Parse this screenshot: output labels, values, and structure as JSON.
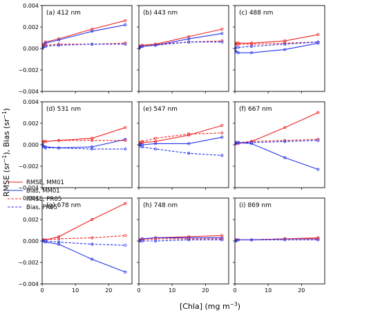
{
  "figure": {
    "ylabel_main": "RMSE (sr",
    "ylabel_sup1": "−1",
    "ylabel_mid": "), Bias (sr",
    "ylabel_sup2": "−1",
    "ylabel_end": ")",
    "xlabel_main": "[Chla] (mg m",
    "xlabel_sup": "−3",
    "xlabel_end": ")"
  },
  "legend": {
    "entries": [
      {
        "label": "RMSE, MM01",
        "color": "#ee2222",
        "style": "solid"
      },
      {
        "label": "Bias, MM01",
        "color": "#2233ee",
        "style": "solid"
      },
      {
        "label": "RMSE, PR05",
        "color": "#ee2222",
        "style": "dashed"
      },
      {
        "label": "Bias, PR05",
        "color": "#2233ee",
        "style": "dashed"
      }
    ]
  },
  "chart_data": {
    "type": "line",
    "layout": "3x3 small multiples",
    "x": [
      0.03,
      0.3,
      1,
      5,
      15,
      25
    ],
    "xlim": [
      0,
      27
    ],
    "xticks": [
      0,
      10,
      20
    ],
    "ylim": [
      -0.004,
      0.004
    ],
    "yticks": [
      -0.004,
      -0.002,
      0.0,
      0.002,
      0.004
    ],
    "ytick_labels": [
      "−0.004",
      "−0.002",
      "0.000",
      "0.002",
      "0.004"
    ],
    "grid": false,
    "legend_location": "panel g area, left column",
    "colors": {
      "mm01": "#ee2222",
      "bias_mm01": "#2233ee"
    },
    "panels": [
      {
        "title": "(a) 412 nm",
        "series": [
          {
            "name": "RMSE, MM01",
            "values": [
              0.0003,
              0.0004,
              0.0006,
              0.0009,
              0.0018,
              0.0026
            ]
          },
          {
            "name": "Bias, MM01",
            "values": [
              0.0,
              0.0002,
              0.0005,
              0.0008,
              0.0016,
              0.0022
            ]
          },
          {
            "name": "RMSE, PR05",
            "values": [
              0.0002,
              0.0003,
              0.0003,
              0.0004,
              0.0004,
              0.0005
            ]
          },
          {
            "name": "Bias, PR05",
            "values": [
              0.0,
              0.0001,
              0.0002,
              0.0003,
              0.0004,
              0.0004
            ]
          }
        ]
      },
      {
        "title": "(b) 443 nm",
        "series": [
          {
            "name": "RMSE, MM01",
            "values": [
              0.0002,
              0.0002,
              0.0003,
              0.0004,
              0.0011,
              0.0018
            ]
          },
          {
            "name": "Bias, MM01",
            "values": [
              0.0,
              0.0001,
              0.0002,
              0.0003,
              0.0009,
              0.0014
            ]
          },
          {
            "name": "RMSE, PR05",
            "values": [
              0.0001,
              0.0002,
              0.0002,
              0.0004,
              0.0006,
              0.0007
            ]
          },
          {
            "name": "Bias, PR05",
            "values": [
              0.0,
              0.0001,
              0.0002,
              0.0003,
              0.0006,
              0.0006
            ]
          }
        ]
      },
      {
        "title": "(c) 488 nm",
        "series": [
          {
            "name": "RMSE, MM01",
            "values": [
              0.0004,
              0.0005,
              0.0005,
              0.0005,
              0.0007,
              0.0013
            ]
          },
          {
            "name": "Bias, MM01",
            "values": [
              -0.0002,
              -0.0003,
              -0.0004,
              -0.0004,
              -0.0001,
              0.0005
            ]
          },
          {
            "name": "RMSE, PR05",
            "values": [
              0.0004,
              0.0004,
              0.0004,
              0.0004,
              0.0005,
              0.0006
            ]
          },
          {
            "name": "Bias, PR05",
            "values": [
              0.0,
              0.0001,
              0.0001,
              0.0002,
              0.0004,
              0.0006
            ]
          }
        ]
      },
      {
        "title": "(d) 531 nm",
        "series": [
          {
            "name": "RMSE, MM01",
            "values": [
              0.0002,
              0.0003,
              0.0003,
              0.0004,
              0.0006,
              0.0016
            ]
          },
          {
            "name": "Bias, MM01",
            "values": [
              0.0001,
              -0.0001,
              -0.0002,
              -0.0003,
              -0.0002,
              0.0005
            ]
          },
          {
            "name": "RMSE, PR05",
            "values": [
              0.0002,
              0.0003,
              0.0003,
              0.0004,
              0.0004,
              0.0004
            ]
          },
          {
            "name": "Bias, PR05",
            "values": [
              0.0,
              -0.0002,
              -0.0003,
              -0.0003,
              -0.0004,
              -0.0004
            ]
          }
        ]
      },
      {
        "title": "(e) 547 nm",
        "series": [
          {
            "name": "RMSE, MM01",
            "values": [
              0.0001,
              0.0001,
              0.0002,
              0.0003,
              0.0009,
              0.0018
            ]
          },
          {
            "name": "Bias, MM01",
            "values": [
              0.0,
              0.0,
              0.0,
              0.0001,
              0.0001,
              0.0007
            ]
          },
          {
            "name": "RMSE, PR05",
            "values": [
              0.0001,
              0.0002,
              0.0003,
              0.0006,
              0.001,
              0.0011
            ]
          },
          {
            "name": "Bias, PR05",
            "values": [
              0.0,
              -0.0001,
              -0.0002,
              -0.0004,
              -0.0008,
              -0.001
            ]
          }
        ]
      },
      {
        "title": "(f) 667 nm",
        "series": [
          {
            "name": "RMSE, MM01",
            "values": [
              0.0001,
              0.0001,
              0.0001,
              0.0003,
              0.0016,
              0.003
            ]
          },
          {
            "name": "Bias, MM01",
            "values": [
              0.0001,
              0.0001,
              0.0002,
              0.0001,
              -0.0012,
              -0.0023
            ]
          },
          {
            "name": "RMSE, PR05",
            "values": [
              0.0001,
              0.0002,
              0.0002,
              0.0003,
              0.0004,
              0.0005
            ]
          },
          {
            "name": "Bias, PR05",
            "values": [
              0.0001,
              0.0002,
              0.0002,
              0.0002,
              0.0003,
              0.0004
            ]
          }
        ]
      },
      {
        "title": "(g) 678 nm",
        "series": [
          {
            "name": "RMSE, MM01",
            "values": [
              0.0001,
              0.0001,
              0.0001,
              0.0004,
              0.002,
              0.0035
            ]
          },
          {
            "name": "Bias, MM01",
            "values": [
              0.0001,
              0.0,
              -0.0001,
              -0.0003,
              -0.0017,
              -0.0029
            ]
          },
          {
            "name": "RMSE, PR05",
            "values": [
              0.0001,
              0.0001,
              0.0001,
              0.0002,
              0.0003,
              0.0005
            ]
          },
          {
            "name": "Bias, PR05",
            "values": [
              0.0,
              0.0,
              0.0,
              -0.0001,
              -0.0003,
              -0.0004
            ]
          }
        ]
      },
      {
        "title": "(h) 748 nm",
        "series": [
          {
            "name": "RMSE, MM01",
            "values": [
              0.0001,
              0.0001,
              0.0002,
              0.0003,
              0.0004,
              0.0005
            ]
          },
          {
            "name": "Bias, MM01",
            "values": [
              0.0001,
              0.0001,
              0.0002,
              0.0003,
              0.0003,
              0.0003
            ]
          },
          {
            "name": "RMSE, PR05",
            "values": [
              0.0001,
              0.0001,
              0.0001,
              0.0002,
              0.0002,
              0.0002
            ]
          },
          {
            "name": "Bias, PR05",
            "values": [
              0.0,
              0.0,
              0.0,
              0.0,
              0.0001,
              0.0001
            ]
          }
        ]
      },
      {
        "title": "(i) 869 nm",
        "series": [
          {
            "name": "RMSE, MM01",
            "values": [
              0.0001,
              0.0001,
              0.0001,
              0.0001,
              0.0002,
              0.0003
            ]
          },
          {
            "name": "Bias, MM01",
            "values": [
              0.0,
              0.0001,
              0.0001,
              0.0001,
              0.0002,
              0.0002
            ]
          },
          {
            "name": "RMSE, PR05",
            "values": [
              0.0001,
              0.0001,
              0.0001,
              0.0001,
              0.0002,
              0.0002
            ]
          },
          {
            "name": "Bias, PR05",
            "values": [
              0.0,
              0.0,
              0.0001,
              0.0001,
              0.0001,
              0.0001
            ]
          }
        ]
      }
    ]
  }
}
